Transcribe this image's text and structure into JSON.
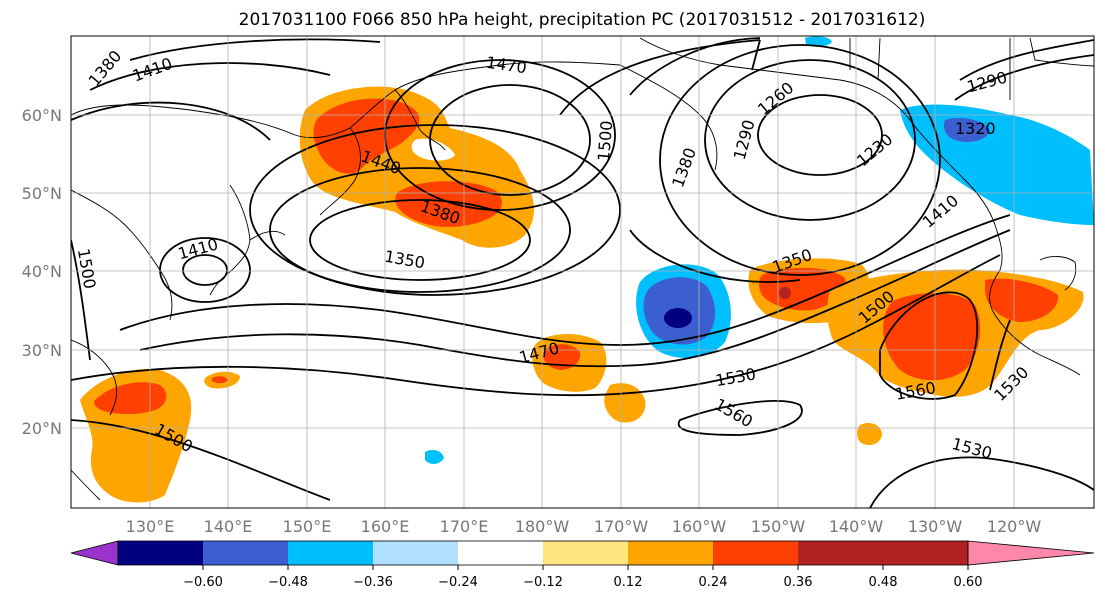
{
  "title": "2017031100 F066 850 hPa height, precipitation PC (2017031512 - 2017031612)",
  "lat_labels": [
    "60°N",
    "50°N",
    "40°N",
    "30°N",
    "20°N"
  ],
  "lon_labels": [
    "130°E",
    "140°E",
    "150°E",
    "160°E",
    "170°E",
    "180°W",
    "170°W",
    "160°W",
    "150°W",
    "140°W",
    "130°W",
    "120°W"
  ],
  "colorbar": {
    "tick_labels": [
      "−0.60",
      "−0.48",
      "−0.36",
      "−0.24",
      "−0.12",
      "0.12",
      "0.24",
      "0.36",
      "0.48",
      "0.60"
    ],
    "colors": [
      "#9933cc",
      "#000080",
      "#3b5fcf",
      "#00bfff",
      "#b0e0ff",
      "#ffffff",
      "#ffe680",
      "#ffa500",
      "#ff4000",
      "#b22222",
      "#ff88aa"
    ]
  },
  "contour_labels": [
    "1380",
    "1410",
    "1470",
    "1500",
    "1440",
    "1380",
    "1410",
    "1350",
    "1500",
    "1260",
    "1290",
    "1380",
    "1230",
    "1290",
    "1320",
    "1410",
    "1350",
    "1500",
    "1470",
    "1530",
    "1560",
    "1560",
    "1530",
    "1500",
    "1530"
  ]
}
